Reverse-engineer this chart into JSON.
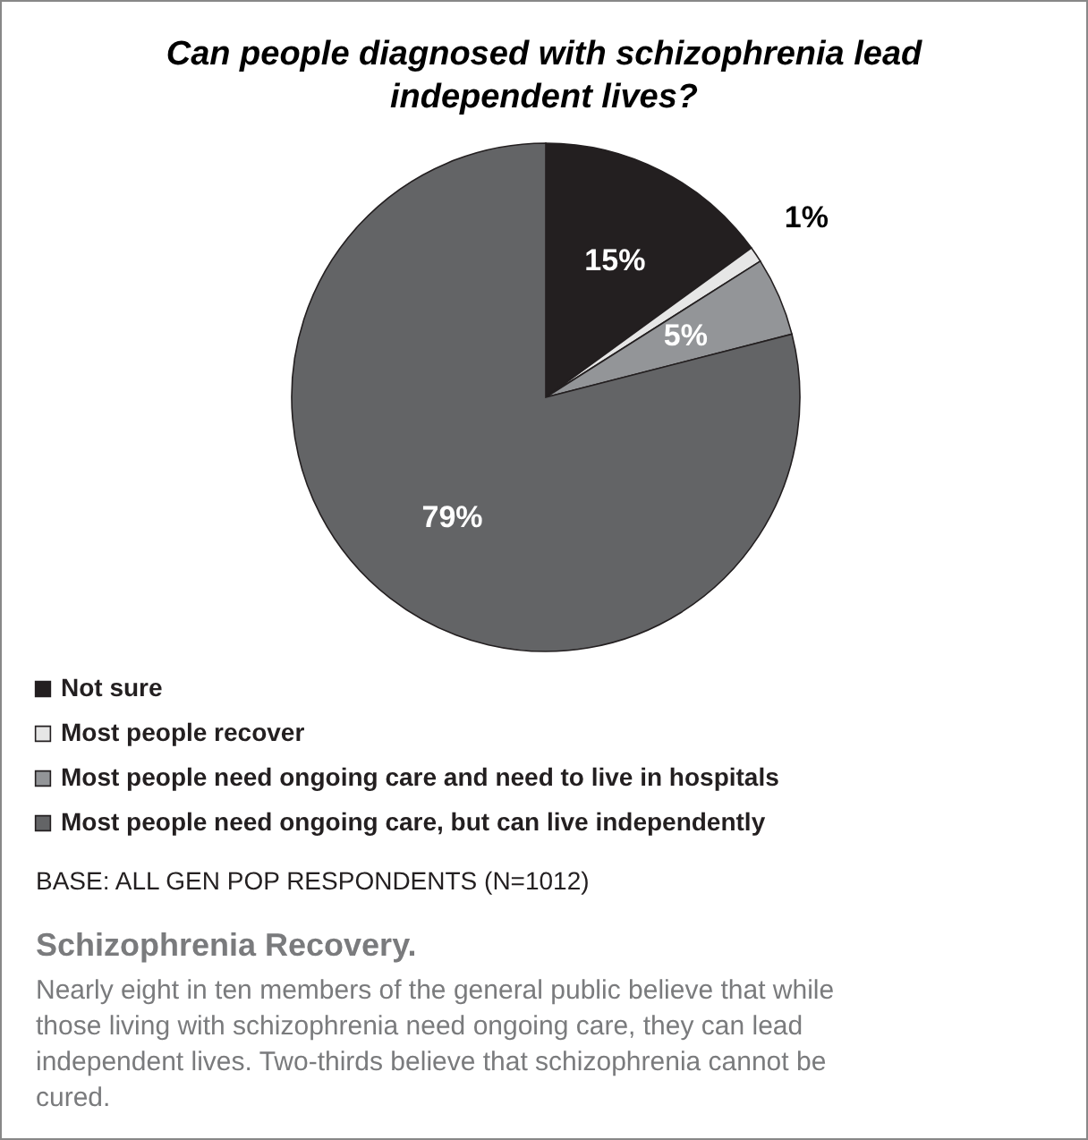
{
  "chart_data": {
    "type": "pie",
    "title": "Can people diagnosed with schizophrenia lead independent lives?",
    "categories": [
      "Not sure",
      "Most people recover",
      "Most people need ongoing care and need to live in hospitals",
      "Most people need ongoing care, but can live independently"
    ],
    "values": [
      15,
      1,
      5,
      79
    ],
    "colors": [
      "#231f20",
      "#e6e6e6",
      "#939598",
      "#636466"
    ],
    "value_labels": [
      "15%",
      "1%",
      "5%",
      "79%"
    ],
    "legend": "bottom",
    "annotations": [
      "BASE: ALL GEN POP RESPONDENTS (N=1012)",
      "Schizophrenia Recovery.",
      "Nearly eight in ten members of the general public believe that while those living with schizophrenia need ongoing care, they can lead independent lives. Two-thirds believe that schizophrenia cannot be cured."
    ]
  }
}
